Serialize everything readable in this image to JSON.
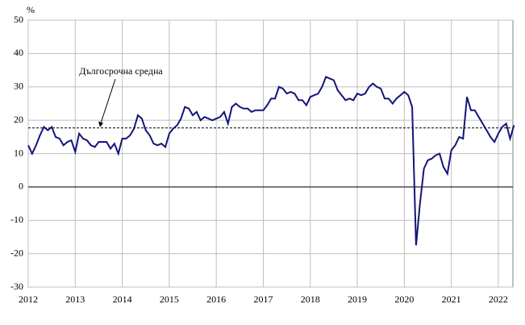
{
  "chart_data": {
    "type": "line",
    "y_unit": "%",
    "x": [
      2012,
      2012.083,
      2012.167,
      2012.25,
      2012.333,
      2012.417,
      2012.5,
      2012.583,
      2012.667,
      2012.75,
      2012.833,
      2012.917,
      2013,
      2013.083,
      2013.167,
      2013.25,
      2013.333,
      2013.417,
      2013.5,
      2013.583,
      2013.667,
      2013.75,
      2013.833,
      2013.917,
      2014,
      2014.083,
      2014.167,
      2014.25,
      2014.333,
      2014.417,
      2014.5,
      2014.583,
      2014.667,
      2014.75,
      2014.833,
      2014.917,
      2015,
      2015.083,
      2015.167,
      2015.25,
      2015.333,
      2015.417,
      2015.5,
      2015.583,
      2015.667,
      2015.75,
      2015.833,
      2015.917,
      2016,
      2016.083,
      2016.167,
      2016.25,
      2016.333,
      2016.417,
      2016.5,
      2016.583,
      2016.667,
      2016.75,
      2016.833,
      2016.917,
      2017,
      2017.083,
      2017.167,
      2017.25,
      2017.333,
      2017.417,
      2017.5,
      2017.583,
      2017.667,
      2017.75,
      2017.833,
      2017.917,
      2018,
      2018.083,
      2018.167,
      2018.25,
      2018.333,
      2018.417,
      2018.5,
      2018.583,
      2018.667,
      2018.75,
      2018.833,
      2018.917,
      2019,
      2019.083,
      2019.167,
      2019.25,
      2019.333,
      2019.417,
      2019.5,
      2019.583,
      2019.667,
      2019.75,
      2019.833,
      2019.917,
      2020,
      2020.083,
      2020.167,
      2020.25,
      2020.333,
      2020.417,
      2020.5,
      2020.583,
      2020.667,
      2020.75,
      2020.833,
      2020.917,
      2021,
      2021.083,
      2021.167,
      2021.25,
      2021.333,
      2021.417,
      2021.5,
      2021.583,
      2021.667,
      2021.75,
      2021.833,
      2021.917,
      2022,
      2022.083,
      2022.167,
      2022.25,
      2022.333
    ],
    "series": [
      {
        "color": "#14147a",
        "values": [
          12.5,
          10,
          12.5,
          15.5,
          18,
          17,
          18,
          15,
          14.5,
          12.5,
          13.5,
          14,
          10.5,
          16,
          14.5,
          14,
          12.5,
          12,
          13.5,
          13.5,
          13.5,
          11.5,
          13,
          10,
          14.5,
          14.5,
          15.5,
          17.5,
          21.5,
          20.5,
          17,
          15.5,
          13,
          12.5,
          13,
          12,
          16,
          17.5,
          18.5,
          20.5,
          24,
          23.5,
          21.5,
          22.5,
          20,
          21,
          20.5,
          20,
          20.5,
          21,
          22.5,
          19,
          24,
          25,
          24,
          23.5,
          23.5,
          22.5,
          23,
          23,
          23,
          24.5,
          26.5,
          26.5,
          30,
          29.5,
          28,
          28.5,
          28,
          26,
          26,
          24.5,
          27,
          27.5,
          28,
          30,
          33,
          32.5,
          32,
          29,
          27.5,
          26,
          26.5,
          26,
          28,
          27.5,
          28,
          30,
          31,
          30,
          29.5,
          26.5,
          26.5,
          25,
          26.5,
          27.5,
          28.5,
          27.5,
          24,
          -17.5,
          -5,
          5.5,
          8,
          8.5,
          9.5,
          10,
          6,
          4,
          11,
          12.5,
          15,
          14.5,
          27,
          23,
          23,
          21,
          19,
          17,
          15,
          13.5,
          16,
          18,
          19,
          14.5,
          18.5
        ]
      }
    ],
    "reference_line": {
      "value": 17.7,
      "label": "Дългосрочна средна"
    },
    "xlim": [
      2012,
      2022.31
    ],
    "xticks": [
      2012,
      2013,
      2014,
      2015,
      2016,
      2017,
      2018,
      2019,
      2020,
      2021,
      2022
    ],
    "ylim": [
      -30,
      50
    ],
    "yticks": [
      -30,
      -20,
      -10,
      0,
      10,
      20,
      30,
      40,
      50
    ],
    "grid": true
  }
}
